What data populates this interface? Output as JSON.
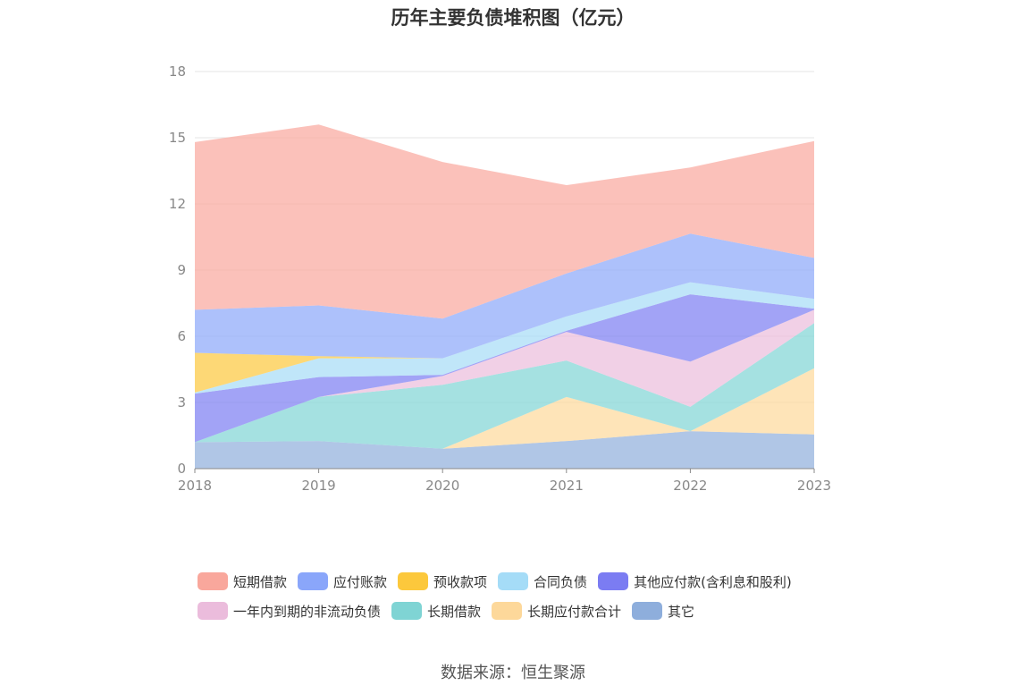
{
  "title": "历年主要负债堆积图（亿元）",
  "source": "数据来源：恒生聚源",
  "chart_data": {
    "type": "area",
    "stacked": true,
    "categories": [
      "2018",
      "2019",
      "2020",
      "2021",
      "2022",
      "2023"
    ],
    "ylim": [
      0,
      18
    ],
    "yticks": [
      "0",
      "3",
      "6",
      "9",
      "12",
      "15",
      "18"
    ],
    "grid": true,
    "legend_position": "bottom",
    "series": [
      {
        "name": "其它",
        "color": "#8eaedc",
        "values": [
          1.2,
          1.25,
          0.9,
          1.25,
          1.7,
          1.55
        ]
      },
      {
        "name": "长期应付款合计",
        "color": "#fdd89a",
        "values": [
          0,
          0,
          0,
          2.0,
          0,
          3.0
        ]
      },
      {
        "name": "长期借款",
        "color": "#7fd4d4",
        "values": [
          0,
          2.0,
          2.9,
          1.65,
          1.1,
          2.05
        ]
      },
      {
        "name": "一年内到期的非流动负债",
        "color": "#ebbcdc",
        "values": [
          0,
          0,
          0.4,
          1.3,
          2.05,
          0.6
        ]
      },
      {
        "name": "其他应付款(含利息和股利)",
        "color": "#7b7cf2",
        "values": [
          2.2,
          0.9,
          0.05,
          0.05,
          3.05,
          0.05
        ]
      },
      {
        "name": "合同负债",
        "color": "#a5dcf7",
        "values": [
          0.05,
          0.85,
          0.75,
          0.65,
          0.55,
          0.45
        ]
      },
      {
        "name": "预收款项",
        "color": "#fcc83c",
        "values": [
          1.8,
          0.1,
          0,
          0,
          0,
          0
        ]
      },
      {
        "name": "应付账款",
        "color": "#8aa6fa",
        "values": [
          1.95,
          2.3,
          1.8,
          1.95,
          2.2,
          1.85
        ]
      },
      {
        "name": "短期借款",
        "color": "#f9a79c",
        "values": [
          7.6,
          8.2,
          7.1,
          4.0,
          3.0,
          5.3
        ]
      }
    ]
  },
  "legend": {
    "row1": [
      {
        "name": "短期借款",
        "color": "#f9a79c"
      },
      {
        "name": "应付账款",
        "color": "#8aa6fa"
      },
      {
        "name": "预收款项",
        "color": "#fcc83c"
      },
      {
        "name": "合同负债",
        "color": "#a5dcf7"
      },
      {
        "name": "其他应付款(含利息和股利)",
        "color": "#7b7cf2"
      }
    ],
    "row2": [
      {
        "name": "一年内到期的非流动负债",
        "color": "#ebbcdc"
      },
      {
        "name": "长期借款",
        "color": "#7fd4d4"
      },
      {
        "name": "长期应付款合计",
        "color": "#fdd89a"
      },
      {
        "name": "其它",
        "color": "#8eaedc"
      }
    ]
  }
}
